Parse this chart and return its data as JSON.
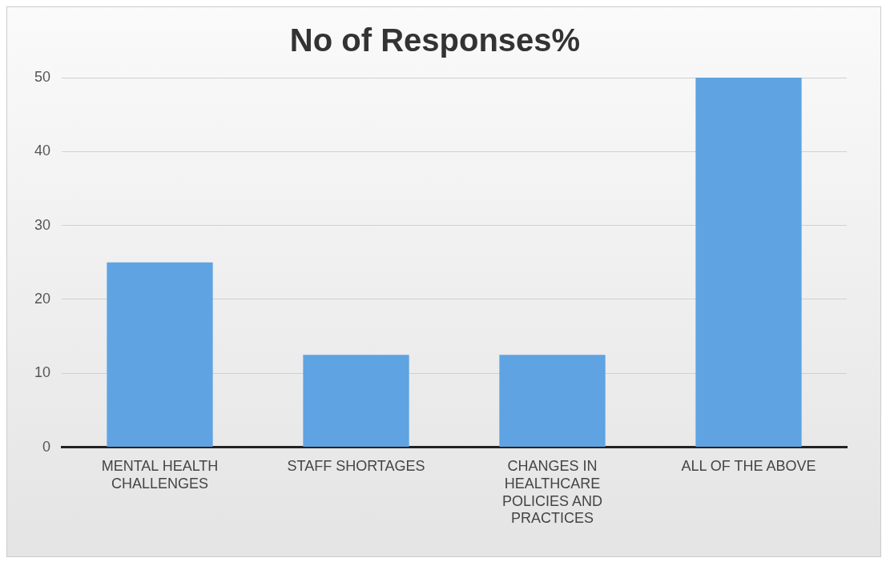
{
  "chart_data": {
    "type": "bar",
    "title": "No of Responses%",
    "categories": [
      "MENTAL HEALTH CHALLENGES",
      "STAFF SHORTAGES",
      "CHANGES IN HEALTHCARE POLICIES AND PRACTICES",
      "ALL OF THE ABOVE"
    ],
    "values": [
      25,
      12.5,
      12.5,
      50
    ],
    "color": "#5fa3e2",
    "ylim": [
      0,
      50
    ],
    "yticks": [
      0,
      10,
      20,
      30,
      40,
      50
    ],
    "grid": "y",
    "legend": false
  }
}
